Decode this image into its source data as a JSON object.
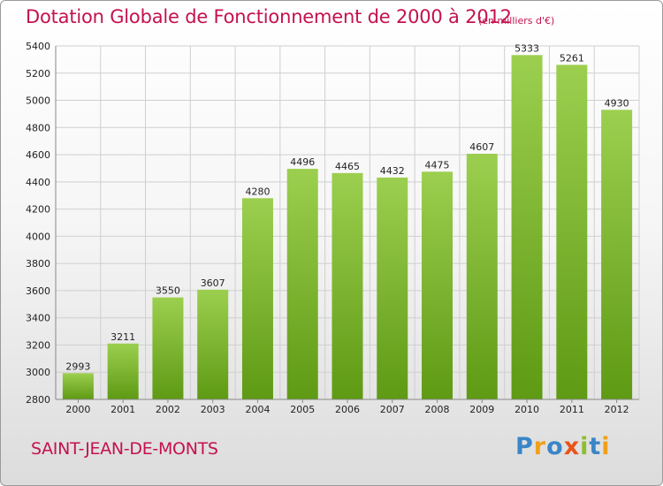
{
  "chart_data": {
    "type": "bar",
    "title": "Dotation Globale de Fonctionnement de 2000 à 2012",
    "subtitle": "(en milliers d'€)",
    "categories": [
      "2000",
      "2001",
      "2002",
      "2003",
      "2004",
      "2005",
      "2006",
      "2007",
      "2008",
      "2009",
      "2010",
      "2011",
      "2012"
    ],
    "values": [
      2993,
      3211,
      3550,
      3607,
      4280,
      4496,
      4465,
      4432,
      4475,
      4607,
      5333,
      5261,
      4930
    ],
    "data_labels": [
      "2993",
      "3211",
      "3550",
      "3607",
      "4280",
      "4496",
      "4465",
      "4432",
      "4475",
      "4607",
      "5333",
      "5261",
      "4930"
    ],
    "ylim": [
      2800,
      5400
    ],
    "yticks": [
      2800,
      3000,
      3200,
      3400,
      3600,
      3800,
      4000,
      4200,
      4400,
      4600,
      4800,
      5000,
      5200,
      5400
    ],
    "grid": true,
    "xlabel": "",
    "ylabel": "",
    "colors": {
      "bar_top": "#9ccf4f",
      "bar_bottom": "#5e9a14",
      "grid": "#cfcfcf",
      "title": "#c5114f"
    }
  },
  "location": "SAINT-JEAN-DE-MONTS",
  "brand": {
    "text": "Proxiti",
    "letters": [
      {
        "ch": "P",
        "color": "#3a86c8"
      },
      {
        "ch": "r",
        "color": "#f0a01c"
      },
      {
        "ch": "o",
        "color": "#3a86c8"
      },
      {
        "ch": "x",
        "color": "#e8541a"
      },
      {
        "ch": "i",
        "color": "#8bbf2e"
      },
      {
        "ch": "t",
        "color": "#3a86c8"
      },
      {
        "ch": "i",
        "color": "#f0a01c"
      }
    ]
  }
}
